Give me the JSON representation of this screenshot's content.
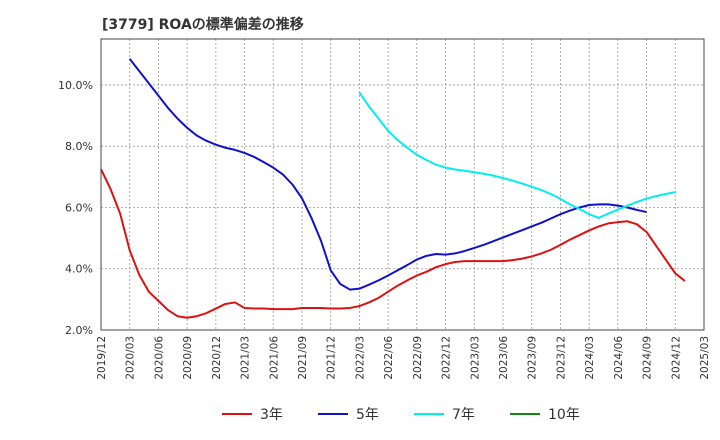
{
  "chart_data": {
    "type": "line",
    "title": "[3779]  ROAの標準偏差の推移",
    "xlabel": "",
    "ylabel": "",
    "ylim": [
      2.0,
      11.5
    ],
    "yticks": [
      2.0,
      4.0,
      6.0,
      8.0,
      10.0
    ],
    "ytick_labels": [
      "2.0%",
      "4.0%",
      "6.0%",
      "8.0%",
      "10.0%"
    ],
    "xtick_labels": [
      "2019/12",
      "2020/03",
      "2020/06",
      "2020/09",
      "2020/12",
      "2021/03",
      "2021/06",
      "2021/09",
      "2021/12",
      "2022/03",
      "2022/06",
      "2022/09",
      "2022/12",
      "2023/03",
      "2023/06",
      "2023/09",
      "2023/12",
      "2024/03",
      "2024/06",
      "2024/09",
      "2024/12",
      "2025/03"
    ],
    "x_start": "2019/12",
    "x_step_months": 1,
    "grid": true,
    "legend_position": "bottom",
    "series": [
      {
        "name": "3年",
        "color": "#dd1111",
        "start_index": 0,
        "values": [
          7.25,
          6.6,
          5.8,
          4.6,
          3.8,
          3.25,
          2.95,
          2.65,
          2.45,
          2.4,
          2.45,
          2.55,
          2.7,
          2.85,
          2.9,
          2.72,
          2.7,
          2.7,
          2.68,
          2.68,
          2.68,
          2.72,
          2.72,
          2.72,
          2.7,
          2.7,
          2.72,
          2.78,
          2.9,
          3.05,
          3.25,
          3.45,
          3.62,
          3.78,
          3.9,
          4.05,
          4.15,
          4.22,
          4.25,
          4.25,
          4.25,
          4.25,
          4.25,
          4.28,
          4.33,
          4.4,
          4.5,
          4.62,
          4.78,
          4.95,
          5.1,
          5.25,
          5.38,
          5.48,
          5.52,
          5.55,
          5.45,
          5.2,
          4.75,
          4.3,
          3.85,
          3.6
        ]
      },
      {
        "name": "5年",
        "color": "#1111cc",
        "start_index": 3,
        "values": [
          10.85,
          10.45,
          10.05,
          9.65,
          9.25,
          8.9,
          8.6,
          8.35,
          8.18,
          8.05,
          7.95,
          7.88,
          7.78,
          7.65,
          7.48,
          7.3,
          7.08,
          6.75,
          6.3,
          5.65,
          4.9,
          3.95,
          3.5,
          3.32,
          3.35,
          3.48,
          3.62,
          3.78,
          3.95,
          4.12,
          4.3,
          4.42,
          4.48,
          4.46,
          4.5,
          4.58,
          4.68,
          4.78,
          4.9,
          5.02,
          5.14,
          5.26,
          5.38,
          5.5,
          5.64,
          5.78,
          5.9,
          6.0,
          6.08,
          6.1,
          6.1,
          6.06,
          6.0,
          5.92,
          5.85
        ]
      },
      {
        "name": "7年",
        "color": "#00eeee",
        "start_index": 27,
        "values": [
          9.75,
          9.3,
          8.9,
          8.5,
          8.2,
          7.95,
          7.72,
          7.55,
          7.4,
          7.3,
          7.24,
          7.2,
          7.15,
          7.1,
          7.04,
          6.96,
          6.88,
          6.78,
          6.68,
          6.57,
          6.44,
          6.28,
          6.1,
          5.95,
          5.78,
          5.66,
          5.8,
          5.93,
          6.06,
          6.18,
          6.29,
          6.37,
          6.44,
          6.5
        ]
      },
      {
        "name": "10年",
        "color": "#118811",
        "start_index": 0,
        "values": []
      }
    ]
  }
}
